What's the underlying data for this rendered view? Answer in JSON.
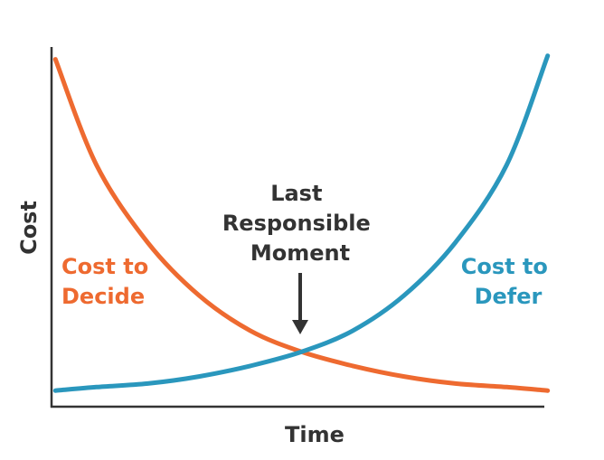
{
  "chart_data": {
    "type": "line",
    "xlabel": "Time",
    "ylabel": "Cost",
    "grid": false,
    "legend": "none",
    "xlim": [
      0,
      1
    ],
    "ylim": [
      0,
      1
    ],
    "series": [
      {
        "name": "Cost to Decide",
        "color": "#ee6a30",
        "x": [
          0.02,
          0.1,
          0.2,
          0.3,
          0.4,
          0.5,
          0.6,
          0.7,
          0.8,
          0.9,
          0.98
        ],
        "y": [
          0.96,
          0.66,
          0.44,
          0.29,
          0.19,
          0.13,
          0.09,
          0.06,
          0.04,
          0.03,
          0.02
        ]
      },
      {
        "name": "Cost to Defer",
        "color": "#2a97bd",
        "x": [
          0.02,
          0.1,
          0.2,
          0.3,
          0.4,
          0.5,
          0.6,
          0.7,
          0.8,
          0.9,
          0.98
        ],
        "y": [
          0.02,
          0.03,
          0.04,
          0.06,
          0.09,
          0.13,
          0.19,
          0.29,
          0.44,
          0.66,
          0.97
        ]
      }
    ],
    "annotations": [
      {
        "name": "last-responsible-moment",
        "lines": [
          "Last",
          "Responsible",
          "Moment"
        ],
        "color": "#333333"
      },
      {
        "name": "cost-to-decide-label",
        "lines": [
          "Cost to",
          "Decide"
        ],
        "color": "#ee6a30"
      },
      {
        "name": "cost-to-defer-label",
        "lines": [
          "Cost to",
          "Defer"
        ],
        "color": "#2a97bd"
      }
    ]
  }
}
